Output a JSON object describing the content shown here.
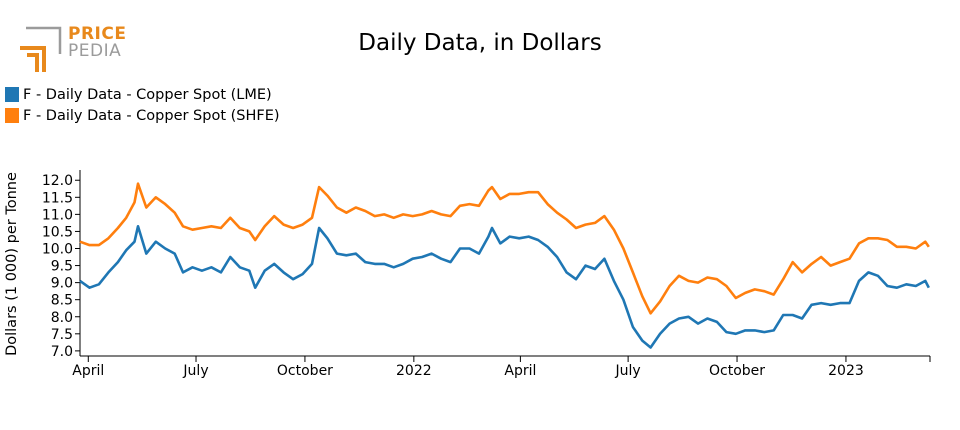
{
  "logo": {
    "line1": "PRICE",
    "line2": "PEDIA",
    "accent": "#e8891c",
    "gray": "#9b9b9b"
  },
  "chart_data": {
    "type": "line",
    "title": "Daily Data, in Dollars",
    "ylabel": "Dollars (1 000) per Tonne",
    "xlabel": "",
    "ylim": [
      6.85,
      12.3
    ],
    "yticks": [
      7.0,
      7.5,
      8.0,
      8.5,
      9.0,
      9.5,
      10.0,
      10.5,
      11.0,
      11.5,
      12.0
    ],
    "xlim": [
      "2021-03-25",
      "2023-03-13"
    ],
    "xticks": [
      {
        "label": "April",
        "date": "2021-04-01"
      },
      {
        "label": "July",
        "date": "2021-07-01"
      },
      {
        "label": "October",
        "date": "2021-10-01"
      },
      {
        "label": "2022",
        "date": "2022-01-01"
      },
      {
        "label": "April",
        "date": "2022-04-01"
      },
      {
        "label": "July",
        "date": "2022-07-01"
      },
      {
        "label": "October",
        "date": "2022-10-01"
      },
      {
        "label": "2023",
        "date": "2023-01-01"
      }
    ],
    "legend_position": "top-left",
    "grid": false,
    "series": [
      {
        "name": "F - Daily Data - Copper Spot (LME)",
        "color": "#1f77b4",
        "points": [
          [
            "2021-03-25",
            9.05
          ],
          [
            "2021-04-02",
            8.85
          ],
          [
            "2021-04-10",
            8.95
          ],
          [
            "2021-04-18",
            9.3
          ],
          [
            "2021-04-26",
            9.6
          ],
          [
            "2021-05-03",
            9.95
          ],
          [
            "2021-05-10",
            10.2
          ],
          [
            "2021-05-13",
            10.65
          ],
          [
            "2021-05-20",
            9.85
          ],
          [
            "2021-05-28",
            10.2
          ],
          [
            "2021-06-05",
            10.0
          ],
          [
            "2021-06-13",
            9.85
          ],
          [
            "2021-06-20",
            9.3
          ],
          [
            "2021-06-28",
            9.45
          ],
          [
            "2021-07-06",
            9.35
          ],
          [
            "2021-07-14",
            9.45
          ],
          [
            "2021-07-22",
            9.3
          ],
          [
            "2021-07-30",
            9.75
          ],
          [
            "2021-08-07",
            9.45
          ],
          [
            "2021-08-15",
            9.35
          ],
          [
            "2021-08-20",
            8.85
          ],
          [
            "2021-08-28",
            9.35
          ],
          [
            "2021-09-05",
            9.55
          ],
          [
            "2021-09-13",
            9.3
          ],
          [
            "2021-09-21",
            9.1
          ],
          [
            "2021-09-29",
            9.25
          ],
          [
            "2021-10-07",
            9.55
          ],
          [
            "2021-10-13",
            10.6
          ],
          [
            "2021-10-20",
            10.3
          ],
          [
            "2021-10-28",
            9.85
          ],
          [
            "2021-11-05",
            9.8
          ],
          [
            "2021-11-13",
            9.85
          ],
          [
            "2021-11-21",
            9.6
          ],
          [
            "2021-11-29",
            9.55
          ],
          [
            "2021-12-07",
            9.55
          ],
          [
            "2021-12-15",
            9.45
          ],
          [
            "2021-12-23",
            9.55
          ],
          [
            "2021-12-31",
            9.7
          ],
          [
            "2022-01-08",
            9.75
          ],
          [
            "2022-01-16",
            9.85
          ],
          [
            "2022-01-24",
            9.7
          ],
          [
            "2022-02-01",
            9.6
          ],
          [
            "2022-02-09",
            10.0
          ],
          [
            "2022-02-17",
            10.0
          ],
          [
            "2022-02-25",
            9.85
          ],
          [
            "2022-03-05",
            10.35
          ],
          [
            "2022-03-08",
            10.6
          ],
          [
            "2022-03-15",
            10.15
          ],
          [
            "2022-03-23",
            10.35
          ],
          [
            "2022-03-31",
            10.3
          ],
          [
            "2022-04-08",
            10.35
          ],
          [
            "2022-04-16",
            10.25
          ],
          [
            "2022-04-24",
            10.05
          ],
          [
            "2022-05-02",
            9.75
          ],
          [
            "2022-05-10",
            9.3
          ],
          [
            "2022-05-18",
            9.1
          ],
          [
            "2022-05-26",
            9.5
          ],
          [
            "2022-06-03",
            9.4
          ],
          [
            "2022-06-11",
            9.7
          ],
          [
            "2022-06-19",
            9.05
          ],
          [
            "2022-06-27",
            8.5
          ],
          [
            "2022-07-05",
            7.7
          ],
          [
            "2022-07-13",
            7.3
          ],
          [
            "2022-07-20",
            7.1
          ],
          [
            "2022-07-28",
            7.5
          ],
          [
            "2022-08-05",
            7.8
          ],
          [
            "2022-08-13",
            7.95
          ],
          [
            "2022-08-21",
            8.0
          ],
          [
            "2022-08-29",
            7.8
          ],
          [
            "2022-09-06",
            7.95
          ],
          [
            "2022-09-14",
            7.85
          ],
          [
            "2022-09-22",
            7.55
          ],
          [
            "2022-09-30",
            7.5
          ],
          [
            "2022-10-08",
            7.6
          ],
          [
            "2022-10-16",
            7.6
          ],
          [
            "2022-10-24",
            7.55
          ],
          [
            "2022-11-01",
            7.6
          ],
          [
            "2022-11-09",
            8.05
          ],
          [
            "2022-11-17",
            8.05
          ],
          [
            "2022-11-25",
            7.95
          ],
          [
            "2022-12-03",
            8.35
          ],
          [
            "2022-12-11",
            8.4
          ],
          [
            "2022-12-19",
            8.35
          ],
          [
            "2022-12-27",
            8.4
          ],
          [
            "2023-01-04",
            8.4
          ],
          [
            "2023-01-12",
            9.05
          ],
          [
            "2023-01-20",
            9.3
          ],
          [
            "2023-01-28",
            9.2
          ],
          [
            "2023-02-05",
            8.9
          ],
          [
            "2023-02-13",
            8.85
          ],
          [
            "2023-02-21",
            8.95
          ],
          [
            "2023-03-01",
            8.9
          ],
          [
            "2023-03-09",
            9.05
          ],
          [
            "2023-03-12",
            8.85
          ]
        ]
      },
      {
        "name": "F - Daily Data - Copper Spot (SHFE)",
        "color": "#ff7f0e",
        "points": [
          [
            "2021-03-25",
            10.2
          ],
          [
            "2021-04-02",
            10.1
          ],
          [
            "2021-04-10",
            10.1
          ],
          [
            "2021-04-18",
            10.3
          ],
          [
            "2021-04-26",
            10.6
          ],
          [
            "2021-05-03",
            10.9
          ],
          [
            "2021-05-10",
            11.35
          ],
          [
            "2021-05-13",
            11.9
          ],
          [
            "2021-05-20",
            11.2
          ],
          [
            "2021-05-28",
            11.5
          ],
          [
            "2021-06-05",
            11.3
          ],
          [
            "2021-06-13",
            11.05
          ],
          [
            "2021-06-20",
            10.65
          ],
          [
            "2021-06-28",
            10.55
          ],
          [
            "2021-07-06",
            10.6
          ],
          [
            "2021-07-14",
            10.65
          ],
          [
            "2021-07-22",
            10.6
          ],
          [
            "2021-07-30",
            10.9
          ],
          [
            "2021-08-07",
            10.6
          ],
          [
            "2021-08-15",
            10.5
          ],
          [
            "2021-08-20",
            10.25
          ],
          [
            "2021-08-28",
            10.65
          ],
          [
            "2021-09-05",
            10.95
          ],
          [
            "2021-09-13",
            10.7
          ],
          [
            "2021-09-21",
            10.6
          ],
          [
            "2021-09-29",
            10.7
          ],
          [
            "2021-10-07",
            10.9
          ],
          [
            "2021-10-13",
            11.8
          ],
          [
            "2021-10-20",
            11.55
          ],
          [
            "2021-10-28",
            11.2
          ],
          [
            "2021-11-05",
            11.05
          ],
          [
            "2021-11-13",
            11.2
          ],
          [
            "2021-11-21",
            11.1
          ],
          [
            "2021-11-29",
            10.95
          ],
          [
            "2021-12-07",
            11.0
          ],
          [
            "2021-12-15",
            10.9
          ],
          [
            "2021-12-23",
            11.0
          ],
          [
            "2021-12-31",
            10.95
          ],
          [
            "2022-01-08",
            11.0
          ],
          [
            "2022-01-16",
            11.1
          ],
          [
            "2022-01-24",
            11.0
          ],
          [
            "2022-02-01",
            10.95
          ],
          [
            "2022-02-09",
            11.25
          ],
          [
            "2022-02-17",
            11.3
          ],
          [
            "2022-02-25",
            11.25
          ],
          [
            "2022-03-05",
            11.7
          ],
          [
            "2022-03-08",
            11.8
          ],
          [
            "2022-03-15",
            11.45
          ],
          [
            "2022-03-23",
            11.6
          ],
          [
            "2022-03-31",
            11.6
          ],
          [
            "2022-04-08",
            11.65
          ],
          [
            "2022-04-16",
            11.65
          ],
          [
            "2022-04-24",
            11.3
          ],
          [
            "2022-05-02",
            11.05
          ],
          [
            "2022-05-10",
            10.85
          ],
          [
            "2022-05-18",
            10.6
          ],
          [
            "2022-05-26",
            10.7
          ],
          [
            "2022-06-03",
            10.75
          ],
          [
            "2022-06-11",
            10.95
          ],
          [
            "2022-06-19",
            10.55
          ],
          [
            "2022-06-27",
            10.0
          ],
          [
            "2022-07-05",
            9.3
          ],
          [
            "2022-07-13",
            8.6
          ],
          [
            "2022-07-20",
            8.1
          ],
          [
            "2022-07-28",
            8.45
          ],
          [
            "2022-08-05",
            8.9
          ],
          [
            "2022-08-13",
            9.2
          ],
          [
            "2022-08-21",
            9.05
          ],
          [
            "2022-08-29",
            9.0
          ],
          [
            "2022-09-06",
            9.15
          ],
          [
            "2022-09-14",
            9.1
          ],
          [
            "2022-09-22",
            8.9
          ],
          [
            "2022-09-30",
            8.55
          ],
          [
            "2022-10-08",
            8.7
          ],
          [
            "2022-10-16",
            8.8
          ],
          [
            "2022-10-24",
            8.75
          ],
          [
            "2022-11-01",
            8.65
          ],
          [
            "2022-11-09",
            9.1
          ],
          [
            "2022-11-17",
            9.6
          ],
          [
            "2022-11-25",
            9.3
          ],
          [
            "2022-12-03",
            9.55
          ],
          [
            "2022-12-11",
            9.75
          ],
          [
            "2022-12-19",
            9.5
          ],
          [
            "2022-12-27",
            9.6
          ],
          [
            "2023-01-04",
            9.7
          ],
          [
            "2023-01-12",
            10.15
          ],
          [
            "2023-01-20",
            10.3
          ],
          [
            "2023-01-28",
            10.3
          ],
          [
            "2023-02-05",
            10.25
          ],
          [
            "2023-02-13",
            10.05
          ],
          [
            "2023-02-21",
            10.05
          ],
          [
            "2023-03-01",
            10.0
          ],
          [
            "2023-03-09",
            10.2
          ],
          [
            "2023-03-12",
            10.05
          ]
        ]
      }
    ]
  }
}
